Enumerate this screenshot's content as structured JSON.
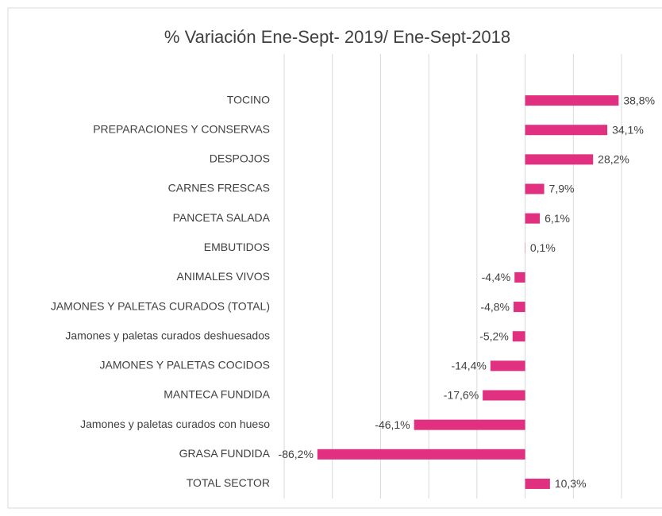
{
  "chart_data": {
    "type": "barh",
    "title": "% Variación Ene-Sept- 2019/ Ene-Sept-2018",
    "categories": [
      "TOCINO",
      "PREPARACIONES Y CONSERVAS",
      "DESPOJOS",
      "CARNES FRESCAS",
      "PANCETA SALADA",
      "EMBUTIDOS",
      "ANIMALES VIVOS",
      "JAMONES Y PALETAS CURADOS (TOTAL)",
      "Jamones y paletas curados deshuesados",
      "JAMONES Y PALETAS COCIDOS",
      "MANTECA FUNDIDA",
      "Jamones y paletas curados con hueso",
      "GRASA FUNDIDA",
      "TOTAL SECTOR"
    ],
    "values": [
      38.8,
      34.1,
      28.2,
      7.9,
      6.1,
      0.1,
      -4.4,
      -4.8,
      -5.2,
      -14.4,
      -17.6,
      -46.1,
      -86.2,
      10.3
    ],
    "value_labels": [
      "38,8%",
      "34,1%",
      "28,2%",
      "7,9%",
      "6,1%",
      "0,1%",
      "-4,4%",
      "-4,8%",
      "-5,2%",
      "-14,4%",
      "-17,6%",
      "-46,1%",
      "-86,2%",
      "10,3%"
    ],
    "color": "#e0307f",
    "xlim": [
      -100,
      40
    ],
    "xticks": [
      -100,
      -80,
      -60,
      -40,
      -20,
      0,
      20,
      40
    ],
    "grid": true
  }
}
